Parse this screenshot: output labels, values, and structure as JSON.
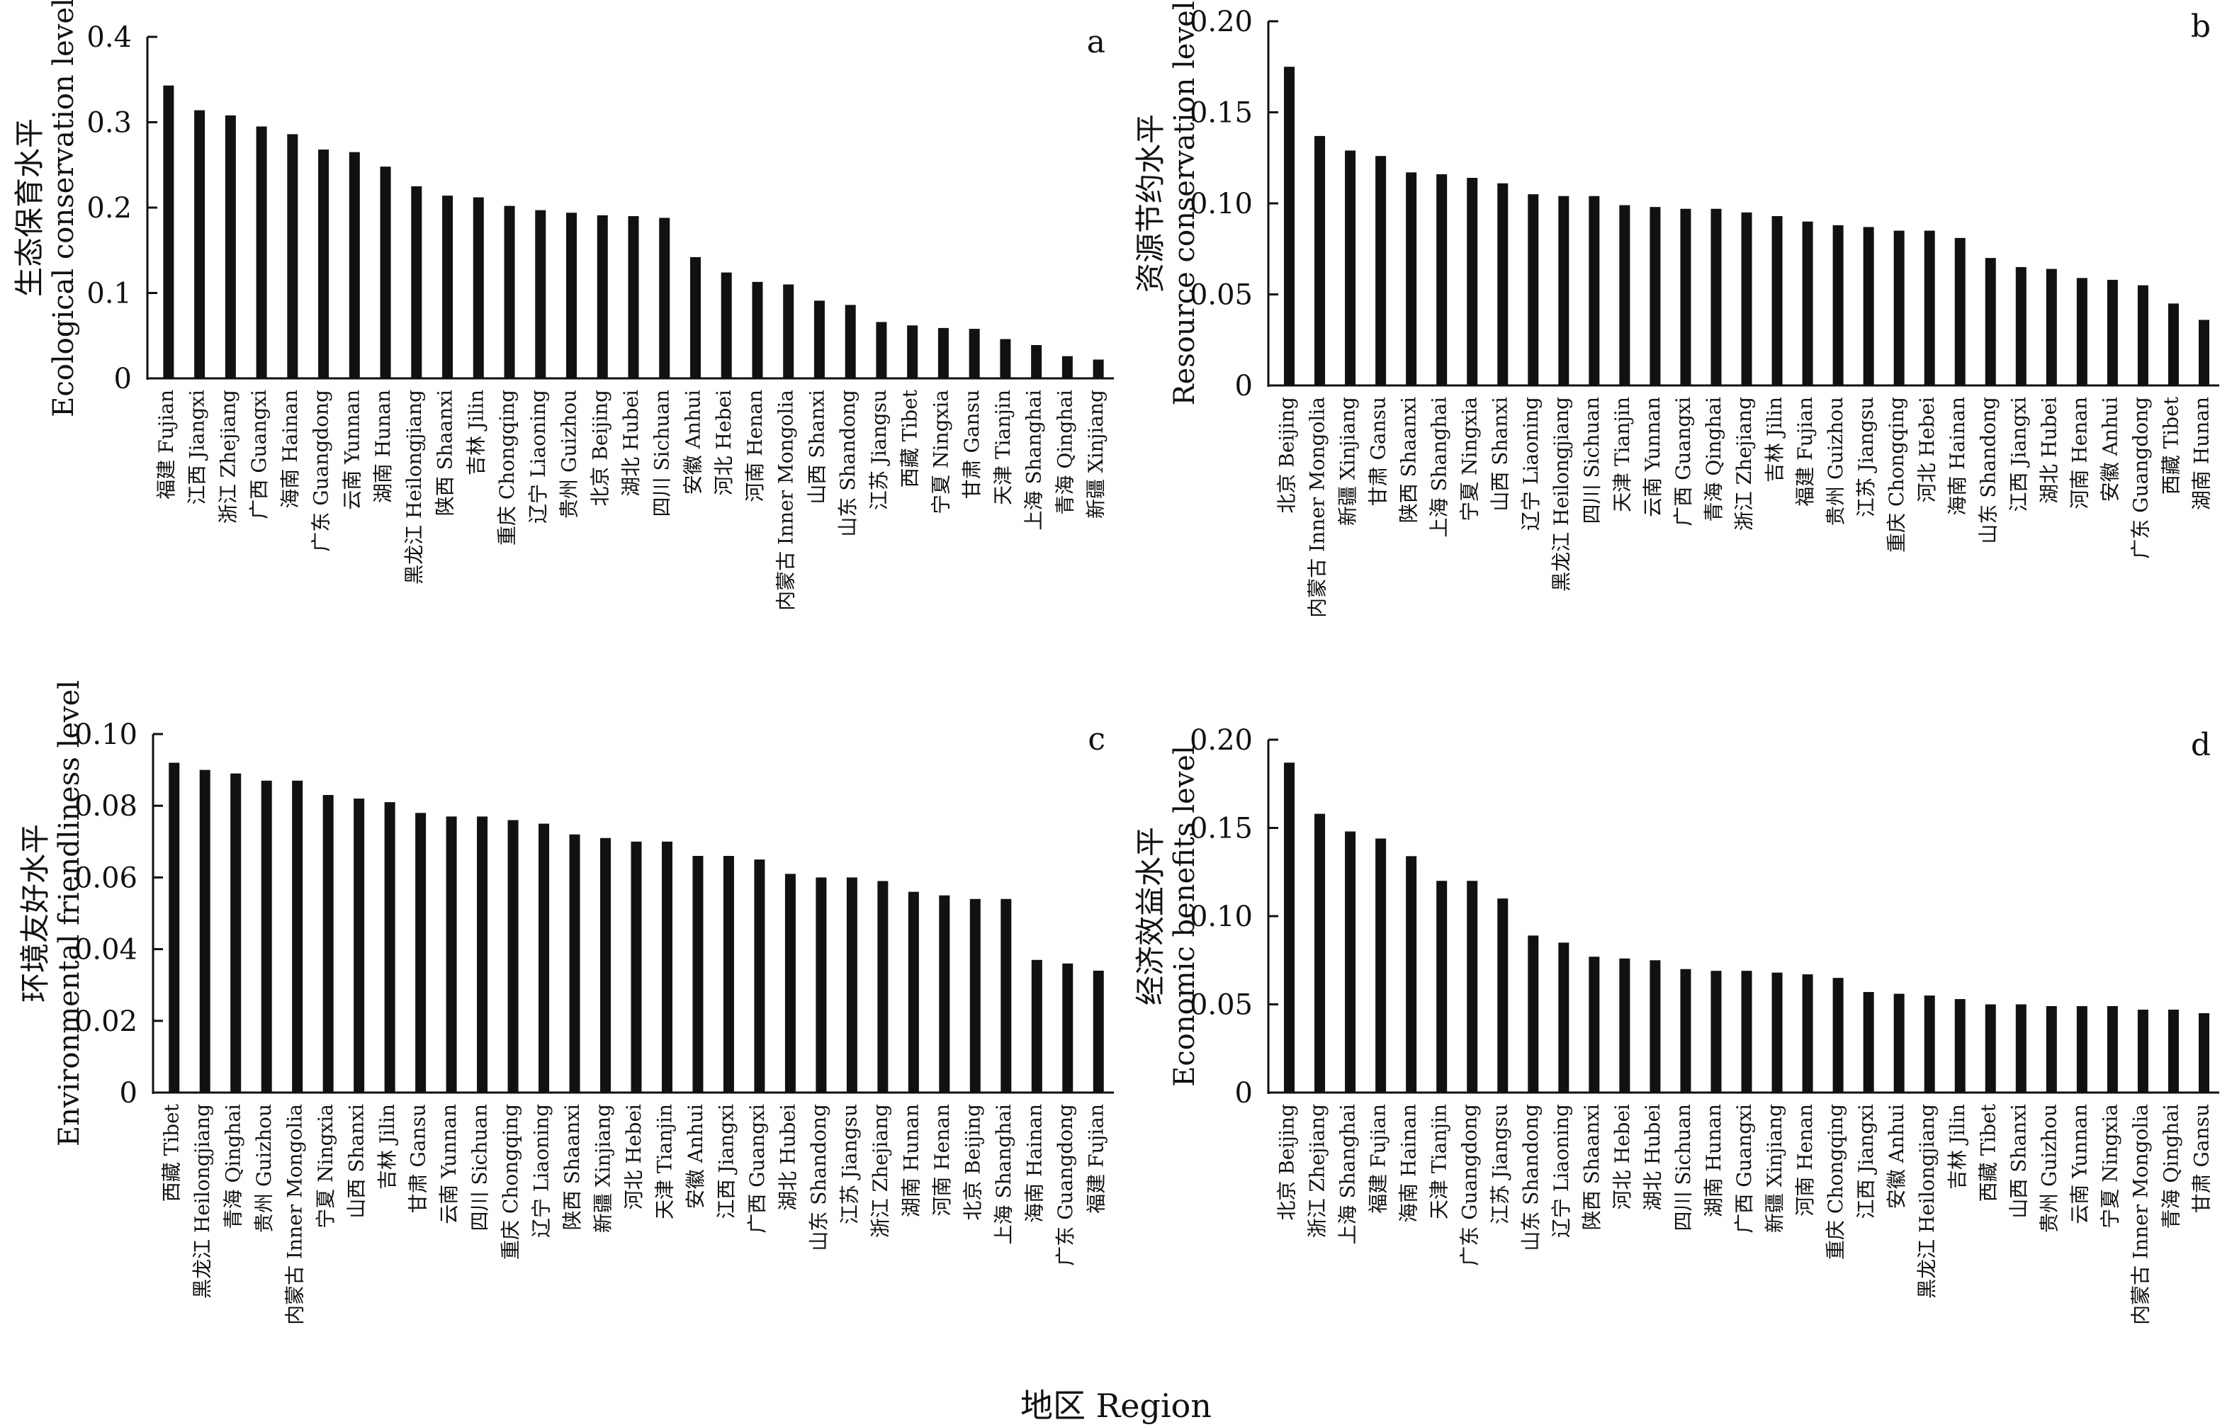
{
  "x_axis_title": "地区 Region",
  "chart_data": [
    {
      "type": "bar",
      "panel_letter": "a",
      "ylabel_cn": "生态保育水平",
      "ylabel_en": "Ecological conservation level",
      "ylim": [
        0,
        0.4
      ],
      "yticks": [
        "0",
        "0.1",
        "0.2",
        "0.3",
        "0.4"
      ],
      "categories": [
        "福建 Fujian",
        "江西 Jiangxi",
        "浙江 Zhejiang",
        "广西 Guangxi",
        "海南 Hainan",
        "广东 Guangdong",
        "云南 Yunnan",
        "湖南 Hunan",
        "黑龙江 Heilongjiang",
        "陕西 Shaanxi",
        "吉林 Jilin",
        "重庆 Chongqing",
        "辽宁 Liaoning",
        "贵州 Guizhou",
        "北京 Beijing",
        "湖北 Hubei",
        "四川 Sichuan",
        "安徽 Anhui",
        "河北 Hebei",
        "河南 Henan",
        "内蒙古 Inner Mongolia",
        "山西 Shanxi",
        "山东 Shandong",
        "江苏 Jiangsu",
        "西藏 Tibet",
        "宁夏 Ningxia",
        "甘肃 Gansu",
        "天津 Tianjin",
        "上海 Shanghai",
        "青海 Qinghai",
        "新疆 Xinjiang"
      ],
      "values": [
        0.343,
        0.314,
        0.308,
        0.295,
        0.286,
        0.268,
        0.265,
        0.248,
        0.225,
        0.214,
        0.212,
        0.202,
        0.197,
        0.194,
        0.191,
        0.19,
        0.188,
        0.142,
        0.124,
        0.113,
        0.11,
        0.091,
        0.086,
        0.066,
        0.062,
        0.059,
        0.058,
        0.046,
        0.039,
        0.026,
        0.022
      ]
    },
    {
      "type": "bar",
      "panel_letter": "b",
      "ylabel_cn": "资源节约水平",
      "ylabel_en": "Resource conservation level",
      "ylim": [
        0,
        0.2
      ],
      "yticks": [
        "0",
        "0.05",
        "0.10",
        "0.15",
        "0.20"
      ],
      "categories": [
        "北京 Beijing",
        "内蒙古 Inner Mongolia",
        "新疆 Xinjiang",
        "甘肃 Gansu",
        "陕西 Shaanxi",
        "上海 Shanghai",
        "宁夏 Ningxia",
        "山西 Shanxi",
        "辽宁 Liaoning",
        "黑龙江 Heilongjiang",
        "四川 Sichuan",
        "天津 Tianjin",
        "云南 Yunnan",
        "广西 Guangxi",
        "青海 Qinghai",
        "浙江 Zhejiang",
        "吉林 Jilin",
        "福建 Fujian",
        "贵州 Guizhou",
        "江苏 Jiangsu",
        "重庆 Chongqing",
        "河北 Hebei",
        "海南 Hainan",
        "山东 Shandong",
        "江西 Jiangxi",
        "湖北 Hubei",
        "河南 Henan",
        "安徽 Anhui",
        "广东 Guangdong",
        "西藏 Tibet",
        "湖南 Hunan"
      ],
      "values": [
        0.175,
        0.137,
        0.129,
        0.126,
        0.117,
        0.116,
        0.114,
        0.111,
        0.105,
        0.104,
        0.104,
        0.099,
        0.098,
        0.097,
        0.097,
        0.095,
        0.093,
        0.09,
        0.088,
        0.087,
        0.085,
        0.085,
        0.081,
        0.07,
        0.065,
        0.064,
        0.059,
        0.058,
        0.055,
        0.045,
        0.036
      ]
    },
    {
      "type": "bar",
      "panel_letter": "c",
      "ylabel_cn": "环境友好水平",
      "ylabel_en": "Environmental friendliness level",
      "ylim": [
        0,
        0.1
      ],
      "yticks": [
        "0",
        "0.02",
        "0.04",
        "0.06",
        "0.08",
        "0.10"
      ],
      "categories": [
        "西藏 Tibet",
        "黑龙江 Heilongjiang",
        "青海 Qinghai",
        "贵州 Guizhou",
        "内蒙古 Inner Mongolia",
        "宁夏 Ningxia",
        "山西 Shanxi",
        "吉林 Jilin",
        "甘肃 Gansu",
        "云南 Yunnan",
        "四川 Sichuan",
        "重庆 Chongqing",
        "辽宁 Liaoning",
        "陕西 Shaanxi",
        "新疆 Xinjiang",
        "河北 Hebei",
        "天津 Tianjin",
        "安徽 Anhui",
        "江西 Jiangxi",
        "广西 Guangxi",
        "湖北 Hubei",
        "山东 Shandong",
        "江苏 Jiangsu",
        "浙江 Zhejiang",
        "湖南 Hunan",
        "河南 Henan",
        "北京 Beijing",
        "上海 Shanghai",
        "海南 Hainan",
        "广东 Guangdong",
        "福建 Fujian"
      ],
      "values": [
        0.092,
        0.09,
        0.089,
        0.087,
        0.087,
        0.083,
        0.082,
        0.081,
        0.078,
        0.077,
        0.077,
        0.076,
        0.075,
        0.072,
        0.071,
        0.07,
        0.07,
        0.066,
        0.066,
        0.065,
        0.061,
        0.06,
        0.06,
        0.059,
        0.056,
        0.055,
        0.054,
        0.054,
        0.037,
        0.036,
        0.034
      ]
    },
    {
      "type": "bar",
      "panel_letter": "d",
      "ylabel_cn": "经济效益水平",
      "ylabel_en": "Economic benefits level",
      "ylim": [
        0,
        0.2
      ],
      "yticks": [
        "0",
        "0.05",
        "0.10",
        "0.15",
        "0.20"
      ],
      "categories": [
        "北京 Beijing",
        "浙江 Zhejiang",
        "上海 Shanghai",
        "福建 Fujian",
        "海南 Hainan",
        "天津 Tianjin",
        "广东 Guangdong",
        "江苏 Jiangsu",
        "山东 Shandong",
        "辽宁 Liaoning",
        "陕西 Shaanxi",
        "河北 Hebei",
        "湖北 Hubei",
        "四川 Sichuan",
        "湖南 Hunan",
        "广西 Guangxi",
        "新疆 Xinjiang",
        "河南 Henan",
        "重庆 Chongqing",
        "江西 Jiangxi",
        "安徽 Anhui",
        "黑龙江 Heilongjiang",
        "吉林 Jilin",
        "西藏 Tibet",
        "山西 Shanxi",
        "贵州 Guizhou",
        "云南 Yunnan",
        "宁夏 Ningxia",
        "内蒙古 Inner Mongolia",
        "青海 Qinghai",
        "甘肃 Gansu"
      ],
      "values": [
        0.187,
        0.158,
        0.148,
        0.144,
        0.134,
        0.12,
        0.12,
        0.11,
        0.089,
        0.085,
        0.077,
        0.076,
        0.075,
        0.07,
        0.069,
        0.069,
        0.068,
        0.067,
        0.065,
        0.057,
        0.056,
        0.055,
        0.053,
        0.05,
        0.05,
        0.049,
        0.049,
        0.049,
        0.047,
        0.047,
        0.045
      ]
    }
  ]
}
